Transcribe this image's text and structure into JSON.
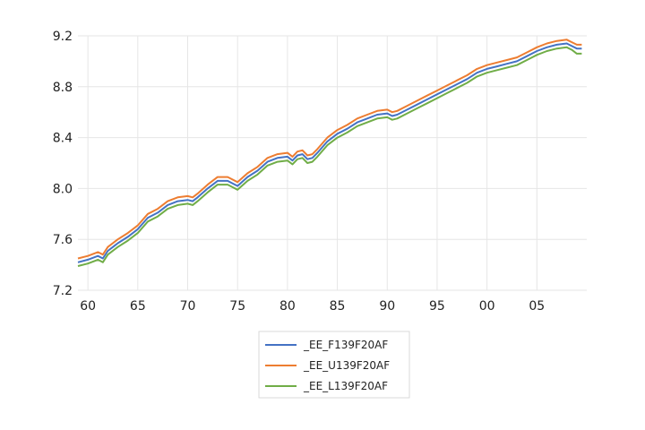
{
  "chart_data": {
    "type": "line",
    "title": "",
    "xlabel": "",
    "ylabel": "",
    "xlim": [
      1959,
      2010
    ],
    "ylim": [
      7.2,
      9.2
    ],
    "y_ticks": [
      "7.2",
      "7.6",
      "8.0",
      "8.4",
      "8.8",
      "9.2"
    ],
    "y_tick_values": [
      7.2,
      7.6,
      8.0,
      8.4,
      8.8,
      9.2
    ],
    "x_ticks": [
      "60",
      "65",
      "70",
      "75",
      "80",
      "85",
      "90",
      "95",
      "00",
      "05"
    ],
    "x_tick_values": [
      1960,
      1965,
      1970,
      1975,
      1980,
      1985,
      1990,
      1995,
      2000,
      2005
    ],
    "grid": true,
    "legend_position": "bottom",
    "x": [
      1959.0,
      1960.0,
      1961.0,
      1961.5,
      1962.0,
      1963.0,
      1964.0,
      1965.0,
      1966.0,
      1967.0,
      1968.0,
      1969.0,
      1970.0,
      1970.5,
      1971.0,
      1972.0,
      1973.0,
      1974.0,
      1975.0,
      1976.0,
      1977.0,
      1978.0,
      1979.0,
      1980.0,
      1980.5,
      1981.0,
      1981.5,
      1982.0,
      1982.5,
      1983.0,
      1984.0,
      1985.0,
      1986.0,
      1987.0,
      1988.0,
      1989.0,
      1990.0,
      1990.5,
      1991.0,
      1992.0,
      1993.0,
      1994.0,
      1995.0,
      1996.0,
      1997.0,
      1998.0,
      1999.0,
      2000.0,
      2001.0,
      2002.0,
      2003.0,
      2004.0,
      2005.0,
      2006.0,
      2007.0,
      2008.0,
      2008.5,
      2009.0,
      2009.5
    ],
    "series": [
      {
        "name": "_EE_F139F20AF",
        "color": "#4472c4",
        "values": [
          7.42,
          7.44,
          7.47,
          7.45,
          7.51,
          7.57,
          7.62,
          7.68,
          7.77,
          7.81,
          7.87,
          7.9,
          7.91,
          7.9,
          7.93,
          8.0,
          8.06,
          8.06,
          8.02,
          8.09,
          8.14,
          8.21,
          8.24,
          8.25,
          8.22,
          8.26,
          8.27,
          8.23,
          8.24,
          8.28,
          8.37,
          8.43,
          8.47,
          8.52,
          8.55,
          8.58,
          8.59,
          8.57,
          8.58,
          8.62,
          8.66,
          8.7,
          8.74,
          8.78,
          8.82,
          8.86,
          8.91,
          8.94,
          8.96,
          8.98,
          9.0,
          9.04,
          9.08,
          9.11,
          9.13,
          9.14,
          9.12,
          9.1,
          9.1
        ]
      },
      {
        "name": "_EE_U139F20AF",
        "color": "#ed7d31",
        "values": [
          7.45,
          7.47,
          7.5,
          7.48,
          7.54,
          7.6,
          7.65,
          7.71,
          7.8,
          7.84,
          7.9,
          7.93,
          7.94,
          7.93,
          7.96,
          8.03,
          8.09,
          8.09,
          8.05,
          8.12,
          8.17,
          8.24,
          8.27,
          8.28,
          8.25,
          8.29,
          8.3,
          8.26,
          8.27,
          8.31,
          8.4,
          8.46,
          8.5,
          8.55,
          8.58,
          8.61,
          8.62,
          8.6,
          8.61,
          8.65,
          8.69,
          8.73,
          8.77,
          8.81,
          8.85,
          8.89,
          8.94,
          8.97,
          8.99,
          9.01,
          9.03,
          9.07,
          9.11,
          9.14,
          9.16,
          9.17,
          9.15,
          9.13,
          9.13
        ]
      },
      {
        "name": "_EE_L139F20AF",
        "color": "#70ad47",
        "values": [
          7.39,
          7.41,
          7.44,
          7.42,
          7.48,
          7.54,
          7.59,
          7.65,
          7.74,
          7.78,
          7.84,
          7.87,
          7.88,
          7.87,
          7.9,
          7.97,
          8.03,
          8.03,
          7.99,
          8.06,
          8.11,
          8.18,
          8.21,
          8.22,
          8.19,
          8.23,
          8.24,
          8.2,
          8.21,
          8.25,
          8.34,
          8.4,
          8.44,
          8.49,
          8.52,
          8.55,
          8.56,
          8.54,
          8.55,
          8.59,
          8.63,
          8.67,
          8.71,
          8.75,
          8.79,
          8.83,
          8.88,
          8.91,
          8.93,
          8.95,
          8.97,
          9.01,
          9.05,
          9.08,
          9.1,
          9.11,
          9.09,
          9.06,
          9.06
        ]
      }
    ]
  }
}
